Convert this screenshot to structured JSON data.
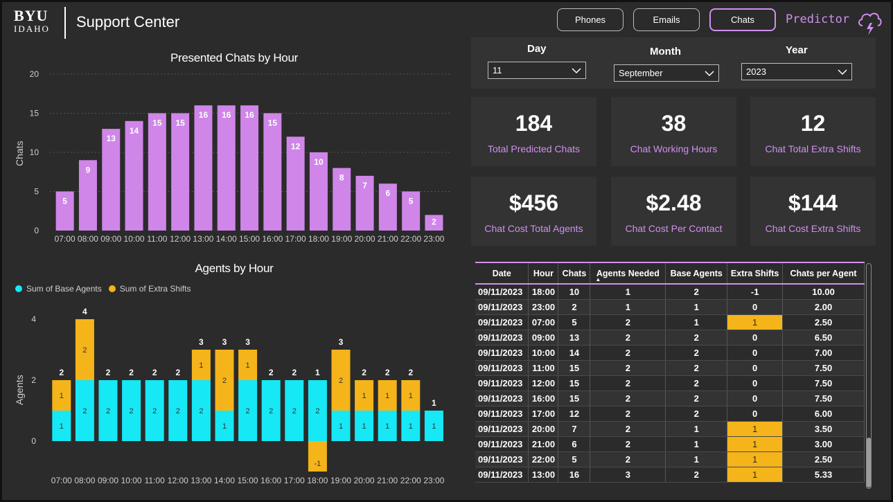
{
  "header": {
    "logo_top": "BYU",
    "logo_bottom": "IDAHO",
    "title": "Support Center",
    "nav": [
      "Phones",
      "Emails",
      "Chats"
    ],
    "active_nav": "Chats",
    "predictor": "Predictor",
    "predictor_icon": "cloud-lightning-icon"
  },
  "colors": {
    "background": "#2b2b2b",
    "panel": "#333333",
    "accent": "#d18ff0",
    "base_agents": "#16e8f5",
    "extra_shifts": "#f4b41a"
  },
  "filters": {
    "day": {
      "label": "Day",
      "value": "11"
    },
    "month": {
      "label": "Month",
      "value": "September"
    },
    "year": {
      "label": "Year",
      "value": "2023"
    }
  },
  "kpis": [
    {
      "value": "184",
      "label": "Total Predicted Chats"
    },
    {
      "value": "38",
      "label": "Chat Working Hours"
    },
    {
      "value": "12",
      "label": "Chat Total Extra Shifts"
    },
    {
      "value": "$456",
      "label": "Chat Cost Total Agents"
    },
    {
      "value": "$2.48",
      "label": "Chat Cost Per Contact"
    },
    {
      "value": "$144",
      "label": "Chat Cost Extra Shifts"
    }
  ],
  "chart_data": [
    {
      "type": "bar",
      "title": "Presented Chats by Hour",
      "ylabel": "Chats",
      "xlabel": "",
      "ylim": [
        0,
        20
      ],
      "yticks": [
        0,
        5,
        10,
        15,
        20
      ],
      "grid": true,
      "categories": [
        "07:00",
        "08:00",
        "09:00",
        "10:00",
        "11:00",
        "12:00",
        "13:00",
        "14:00",
        "15:00",
        "16:00",
        "17:00",
        "18:00",
        "19:00",
        "20:00",
        "21:00",
        "22:00",
        "23:00"
      ],
      "values": [
        5,
        9,
        13,
        14,
        15,
        15,
        16,
        16,
        16,
        15,
        12,
        10,
        8,
        7,
        6,
        5,
        2
      ],
      "color": "#cf86e8"
    },
    {
      "type": "bar",
      "stacked": true,
      "title": "Agents by Hour",
      "ylabel": "Agents",
      "xlabel": "",
      "ylim": [
        -1,
        4
      ],
      "yticks": [
        0,
        2,
        4
      ],
      "legend": "top-left",
      "categories": [
        "07:00",
        "08:00",
        "09:00",
        "10:00",
        "11:00",
        "12:00",
        "13:00",
        "14:00",
        "15:00",
        "16:00",
        "17:00",
        "18:00",
        "19:00",
        "20:00",
        "21:00",
        "22:00",
        "23:00"
      ],
      "series": [
        {
          "name": "Sum of Base Agents",
          "values": [
            1,
            2,
            2,
            2,
            2,
            2,
            2,
            1,
            2,
            2,
            2,
            2,
            1,
            1,
            1,
            1,
            1
          ]
        },
        {
          "name": "Sum of Extra Shifts",
          "values": [
            1,
            2,
            0,
            0,
            0,
            0,
            1,
            2,
            1,
            0,
            0,
            -1,
            2,
            1,
            1,
            1,
            0
          ]
        }
      ],
      "totals": [
        2,
        4,
        2,
        2,
        2,
        2,
        3,
        3,
        3,
        2,
        2,
        1,
        3,
        2,
        2,
        2,
        1
      ]
    },
    {
      "type": "table",
      "columns": [
        "Date",
        "Hour",
        "Chats",
        "Agents Needed",
        "Base Agents",
        "Extra Shifts",
        "Chats per Agent"
      ],
      "sorted_column": "Agents Needed",
      "rows": [
        [
          "09/11/2023",
          "18:00",
          "10",
          "1",
          "2",
          "-1",
          "10.00"
        ],
        [
          "09/11/2023",
          "23:00",
          "2",
          "1",
          "1",
          "0",
          "2.00"
        ],
        [
          "09/11/2023",
          "07:00",
          "5",
          "2",
          "1",
          "1",
          "2.50"
        ],
        [
          "09/11/2023",
          "09:00",
          "13",
          "2",
          "2",
          "0",
          "6.50"
        ],
        [
          "09/11/2023",
          "10:00",
          "14",
          "2",
          "2",
          "0",
          "7.00"
        ],
        [
          "09/11/2023",
          "11:00",
          "15",
          "2",
          "2",
          "0",
          "7.50"
        ],
        [
          "09/11/2023",
          "12:00",
          "15",
          "2",
          "2",
          "0",
          "7.50"
        ],
        [
          "09/11/2023",
          "16:00",
          "15",
          "2",
          "2",
          "0",
          "7.50"
        ],
        [
          "09/11/2023",
          "17:00",
          "12",
          "2",
          "2",
          "0",
          "6.00"
        ],
        [
          "09/11/2023",
          "20:00",
          "7",
          "2",
          "1",
          "1",
          "3.50"
        ],
        [
          "09/11/2023",
          "21:00",
          "6",
          "2",
          "1",
          "1",
          "3.00"
        ],
        [
          "09/11/2023",
          "22:00",
          "5",
          "2",
          "1",
          "1",
          "2.50"
        ],
        [
          "09/11/2023",
          "13:00",
          "16",
          "3",
          "2",
          "1",
          "5.33"
        ]
      ]
    }
  ]
}
